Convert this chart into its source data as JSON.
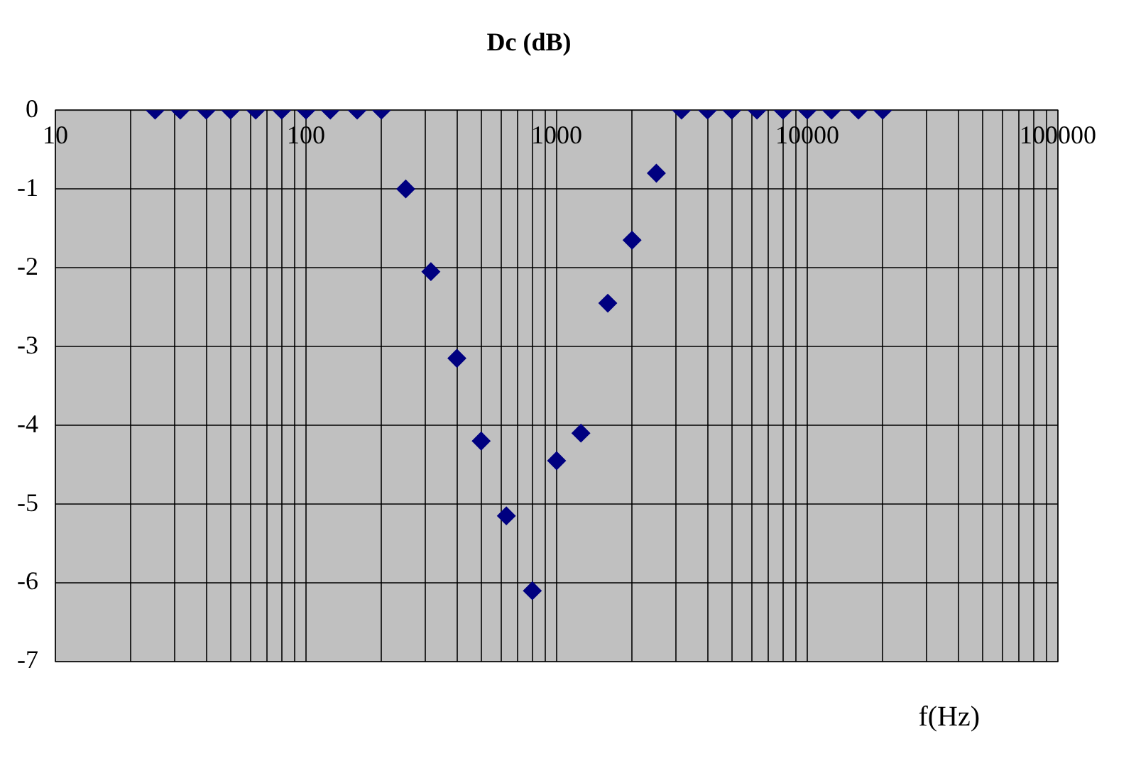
{
  "chart_data": {
    "type": "scatter",
    "title": "Dc (dB)",
    "xlabel": "f(Hz)",
    "log": "x",
    "grid": true,
    "legend": false,
    "marker": "diamond",
    "x": [
      25,
      31.5,
      40,
      50,
      63,
      80,
      100,
      125,
      160,
      200,
      250,
      315,
      400,
      500,
      630,
      800,
      1000,
      1250,
      1600,
      2000,
      2500,
      3150,
      4000,
      5000,
      6300,
      8000,
      10000,
      12500,
      16000,
      20000
    ],
    "series": [
      {
        "color": "#000080",
        "values": [
          0,
          0,
          0,
          0,
          0,
          0,
          0,
          0,
          0,
          0,
          -1.0,
          -2.05,
          -3.15,
          -4.2,
          -5.15,
          -6.1,
          -4.45,
          -4.1,
          -2.45,
          -1.65,
          -0.8,
          0,
          0,
          0,
          0,
          0,
          0,
          0,
          0,
          0
        ]
      }
    ],
    "xlim": [
      10,
      100000
    ],
    "xticks": [
      10,
      {
        "value": 20,
        "label": null
      },
      {
        "value": 30,
        "label": null
      },
      {
        "value": 40,
        "label": null
      },
      {
        "value": 50,
        "label": null
      },
      {
        "value": 60,
        "label": null
      },
      {
        "value": 70,
        "label": null
      },
      {
        "value": 80,
        "label": null
      },
      {
        "value": 90,
        "label": null
      },
      100,
      {
        "value": 200,
        "label": null
      },
      {
        "value": 300,
        "label": null
      },
      {
        "value": 400,
        "label": null
      },
      {
        "value": 500,
        "label": null
      },
      {
        "value": 600,
        "label": null
      },
      {
        "value": 700,
        "label": null
      },
      {
        "value": 800,
        "label": null
      },
      {
        "value": 900,
        "label": null
      },
      1000,
      {
        "value": 2000,
        "label": null
      },
      {
        "value": 3000,
        "label": null
      },
      {
        "value": 4000,
        "label": null
      },
      {
        "value": 5000,
        "label": null
      },
      {
        "value": 6000,
        "label": null
      },
      {
        "value": 7000,
        "label": null
      },
      {
        "value": 8000,
        "label": null
      },
      {
        "value": 9000,
        "label": null
      },
      10000,
      {
        "value": 20000,
        "label": null
      },
      {
        "value": 30000,
        "label": null
      },
      {
        "value": 40000,
        "label": null
      },
      {
        "value": 50000,
        "label": null
      },
      {
        "value": 60000,
        "label": null
      },
      {
        "value": 70000,
        "label": null
      },
      {
        "value": 80000,
        "label": null
      },
      {
        "value": 90000,
        "label": null
      },
      100000
    ],
    "ylim": [
      -7,
      0
    ],
    "yticks": [
      -7,
      -6,
      -5,
      -4,
      -3,
      -2,
      -1,
      0
    ]
  }
}
